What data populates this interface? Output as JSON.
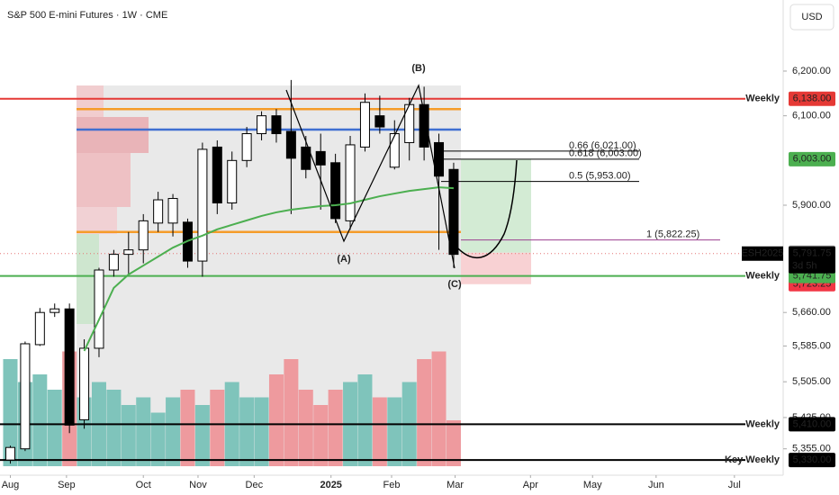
{
  "chart_data": {
    "type": "candlestick",
    "title": "S&P 500 E-mini Futures · 1W · CME",
    "currency": "USD",
    "x": [
      0,
      1,
      2,
      3,
      4,
      5,
      6,
      7,
      8,
      9,
      10,
      11,
      12,
      13,
      14,
      15,
      16,
      17,
      18,
      19,
      20,
      21,
      22,
      23,
      24,
      25,
      26,
      27,
      28,
      29,
      30
    ],
    "open": [
      5330,
      5355,
      5588,
      5660,
      5668,
      5420,
      5580,
      5755,
      5790,
      5800,
      5860,
      5860,
      5862,
      5775,
      6030,
      5905,
      6000,
      6060,
      6100,
      6065,
      6030,
      6020,
      5995,
      5865,
      6030,
      6100,
      5985,
      6040,
      6125,
      6040,
      5980
    ],
    "high": [
      5362,
      5595,
      5670,
      5680,
      5680,
      5600,
      5760,
      5800,
      5840,
      5880,
      5930,
      5925,
      5870,
      6040,
      6045,
      6020,
      6075,
      6110,
      6115,
      6180,
      6055,
      6060,
      6015,
      6055,
      6150,
      6145,
      6090,
      6140,
      6165,
      6060,
      5995
    ],
    "low": [
      5322,
      5350,
      5585,
      5650,
      5390,
      5400,
      5560,
      5740,
      5745,
      5770,
      5840,
      5830,
      5760,
      5740,
      5880,
      5890,
      5985,
      6045,
      6040,
      5880,
      5960,
      5890,
      5860,
      5845,
      6020,
      6060,
      5980,
      6000,
      6000,
      5800,
      5760
    ],
    "close": [
      5358,
      5590,
      5660,
      5668,
      5408,
      5580,
      5755,
      5790,
      5800,
      5865,
      5912,
      5915,
      5775,
      6025,
      5905,
      6000,
      6060,
      6100,
      6060,
      6005,
      5980,
      5990,
      5870,
      6035,
      6130,
      6075,
      6060,
      6125,
      6030,
      5965,
      5790
    ],
    "volume": [
      70,
      55,
      60,
      50,
      75,
      45,
      55,
      50,
      40,
      45,
      35,
      45,
      50,
      40,
      50,
      55,
      45,
      45,
      60,
      70,
      50,
      40,
      50,
      55,
      60,
      45,
      45,
      55,
      70,
      75,
      30
    ],
    "volume_lim": [
      0,
      100
    ],
    "ma": [
      null,
      null,
      null,
      null,
      null,
      5574,
      5644,
      5715,
      5745,
      5765,
      5785,
      5805,
      5820,
      5832,
      5846,
      5856,
      5866,
      5876,
      5884,
      5890,
      5894,
      5898,
      5900,
      5904,
      5912,
      5920,
      5926,
      5932,
      5936,
      5940,
      5938
    ],
    "ma_color": "#4caf50",
    "up_color": "#ffffff",
    "down_color": "#000000",
    "vol_up_color": "#7fc4bb",
    "vol_down_color": "#ee9a9e",
    "xlim": [
      -0.7,
      52.3
    ],
    "ylim": [
      5296,
      6359
    ],
    "xticks": [
      {
        "value": 0,
        "label": "Aug"
      },
      {
        "value": 3.8,
        "label": "Sep"
      },
      {
        "value": 9,
        "label": "Oct"
      },
      {
        "value": 12.7,
        "label": "Nov"
      },
      {
        "value": 16.5,
        "label": "Dec"
      },
      {
        "value": 21.7,
        "label": "2025"
      },
      {
        "value": 25.8,
        "label": "Feb"
      },
      {
        "value": 30.1,
        "label": "Mar"
      },
      {
        "value": 35.2,
        "label": "Apr"
      },
      {
        "value": 39.4,
        "label": "May"
      },
      {
        "value": 43.7,
        "label": "Jun"
      },
      {
        "value": 49,
        "label": "Jul"
      }
    ],
    "yticks": [
      {
        "value": 6200,
        "label": "6,200.00"
      },
      {
        "value": 6100,
        "label": "6,100.00"
      },
      {
        "value": 5900,
        "label": "5,900.00"
      },
      {
        "value": 5660,
        "label": "5,660.00"
      },
      {
        "value": 5585,
        "label": "5,585.00"
      },
      {
        "value": 5505,
        "label": "5,505.00"
      },
      {
        "value": 5425,
        "label": "5,425.00"
      },
      {
        "value": 5355,
        "label": "5,355.00"
      }
    ],
    "levels": [
      {
        "name": "Weekly",
        "value": 6138,
        "value_label": "6,138.00",
        "color": "#e53935"
      },
      {
        "name": "Weekly",
        "value": 5741.75,
        "value_label": "5,741.75",
        "color": "#4caf50"
      },
      {
        "name": "Weekly",
        "value": 5410,
        "value_label": "5,410.00",
        "color": "#000000"
      },
      {
        "name": "Key Weekly",
        "value": 5330,
        "value_label": "5,330.00",
        "color": "#000000"
      }
    ],
    "lines": [
      {
        "value": 6115,
        "color": "#f59c2a"
      },
      {
        "value": 6069,
        "color": "#3f6fd1"
      },
      {
        "value": 5840,
        "color": "#f59c2a"
      }
    ],
    "fib": [
      {
        "label": "0.66 (6,021.00)",
        "value": 6021,
        "color": "#000000"
      },
      {
        "label": "0.618 (6,003.00)",
        "value": 6003,
        "color": "#000000"
      },
      {
        "label": "0.5 (5,953.00)",
        "value": 5953,
        "color": "#000000"
      },
      {
        "label": "1 (5,822.25)",
        "value": 5822.25,
        "color": "#9c3f8f"
      }
    ],
    "position": {
      "target": 6003,
      "target_label": "6,003.00",
      "entry": 5793.75,
      "entry_label": "5,793.75",
      "stop": 5723.25,
      "stop_label": "5,723.25"
    },
    "last": {
      "symbol": "ESH2025",
      "value": 5791.75,
      "value_label": "5,791.75",
      "countdown": "3d 5h"
    },
    "waves": [
      "(A)",
      "(B)",
      "(C)"
    ]
  }
}
